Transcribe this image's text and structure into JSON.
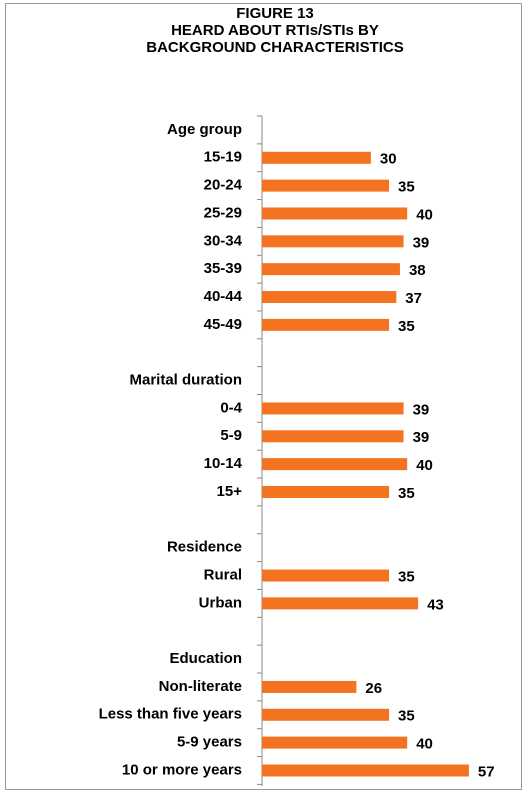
{
  "chart_data": {
    "type": "bar",
    "orientation": "horizontal",
    "title": [
      "FIGURE 13",
      "HEARD ABOUT RTIs/STIs BY",
      "BACKGROUND CHARACTERISTICS"
    ],
    "categories": [
      "Age group",
      "15-19",
      "20-24",
      "25-29",
      "30-34",
      "35-39",
      "40-44",
      "45-49",
      null,
      "Marital duration",
      "0-4",
      "5-9",
      "10-14",
      "15+",
      null,
      "Residence",
      "Rural",
      "Urban",
      null,
      "Education",
      "Non-literate",
      "Less than five years",
      "5-9 years",
      "10 or more years"
    ],
    "values": [
      null,
      30,
      35,
      40,
      39,
      38,
      37,
      35,
      null,
      null,
      39,
      39,
      40,
      35,
      null,
      null,
      35,
      43,
      null,
      null,
      26,
      35,
      40,
      57
    ],
    "color": "#f47320"
  }
}
